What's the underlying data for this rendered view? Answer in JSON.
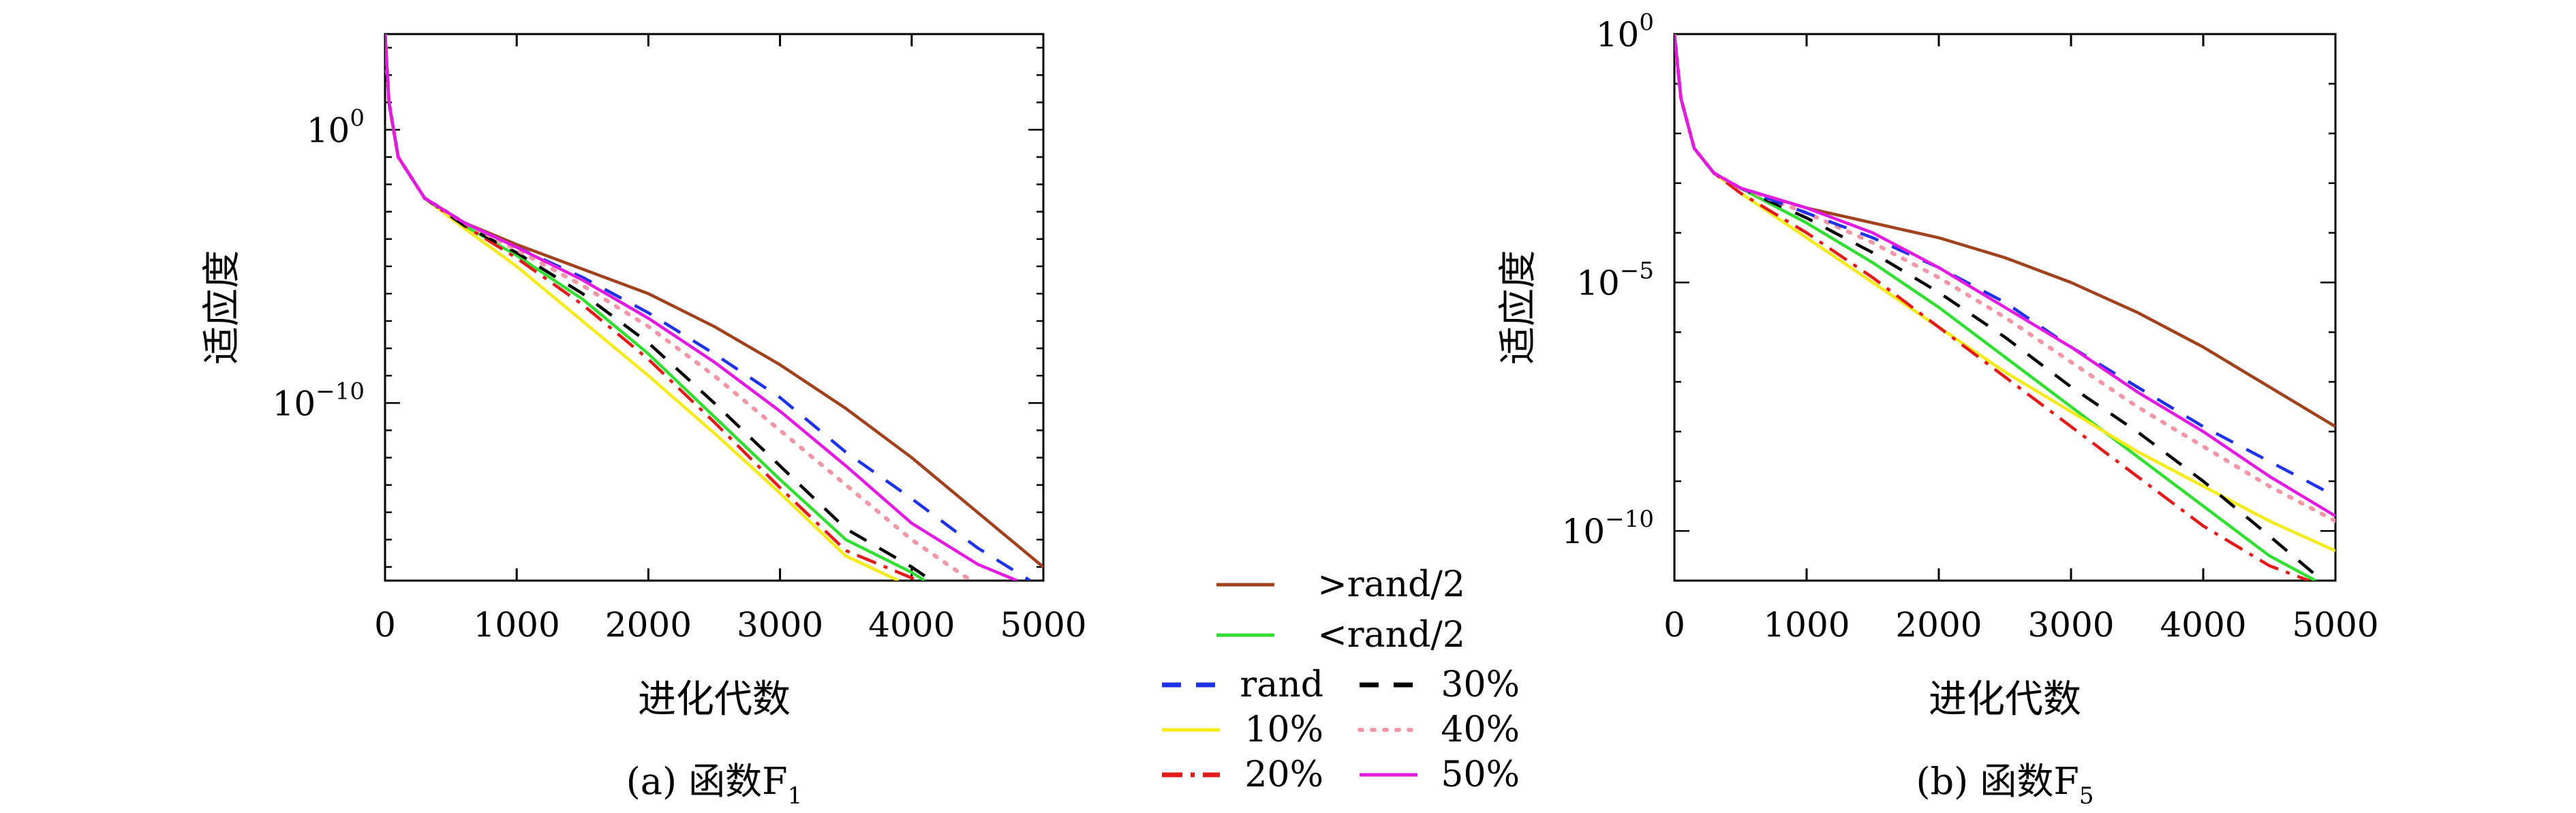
{
  "chart_data": [
    {
      "type": "line",
      "caption": "(a) 函数F",
      "caption_sub": "1",
      "xlabel": "进化代数",
      "ylabel": "适应度",
      "y_scale": "log",
      "xlim": [
        0,
        5000
      ],
      "ylim_exp": [
        -16.5,
        3.5
      ],
      "x_ticks": [
        "0",
        "1000",
        "2000",
        "3000",
        "4000",
        "5000"
      ],
      "y_ticks": [
        {
          "base": "10",
          "exp": "0",
          "value_exp": 0
        },
        {
          "base": "10",
          "exp": "−10",
          "value_exp": -10
        }
      ],
      "series": [
        {
          "name": ">rand/2",
          "color": "#a0421e",
          "dash": "none",
          "x": [
            0,
            30,
            100,
            300,
            600,
            1000,
            1500,
            2000,
            2500,
            3000,
            3500,
            4000,
            4500,
            5000
          ],
          "y_exp": [
            3.5,
            1.0,
            -1.0,
            -2.5,
            -3.4,
            -4.2,
            -5.1,
            -6.0,
            -7.2,
            -8.6,
            -10.2,
            -12.0,
            -14.0,
            -16.0
          ]
        },
        {
          "name": "<rand/2",
          "color": "#33dd33",
          "dash": "none",
          "x": [
            0,
            30,
            100,
            300,
            600,
            1000,
            1500,
            2000,
            2500,
            3000,
            3500,
            4000,
            4100
          ],
          "y_exp": [
            3.5,
            1.0,
            -1.0,
            -2.5,
            -3.5,
            -4.6,
            -6.2,
            -8.2,
            -10.5,
            -12.8,
            -15.0,
            -16.2,
            -16.5
          ]
        },
        {
          "name": "rand",
          "color": "#1f33e6",
          "dash": "28,22",
          "x": [
            0,
            30,
            100,
            300,
            600,
            1000,
            1500,
            2000,
            2500,
            3000,
            3500,
            4000,
            4500,
            4900
          ],
          "y_exp": [
            3.5,
            1.0,
            -1.0,
            -2.5,
            -3.4,
            -4.3,
            -5.4,
            -6.7,
            -8.2,
            -9.8,
            -11.8,
            -13.5,
            -15.3,
            -16.5
          ]
        },
        {
          "name": "30%",
          "color": "#000000",
          "dash": "28,22",
          "x": [
            0,
            30,
            100,
            300,
            600,
            1000,
            1500,
            2000,
            2500,
            3000,
            3500,
            4000,
            4150
          ],
          "y_exp": [
            3.5,
            1.0,
            -1.0,
            -2.5,
            -3.5,
            -4.5,
            -6.0,
            -7.8,
            -10.0,
            -12.3,
            -14.6,
            -16.0,
            -16.5
          ]
        },
        {
          "name": "10%",
          "color": "#f5ea1c",
          "dash": "none",
          "x": [
            0,
            30,
            100,
            300,
            600,
            1000,
            1500,
            2000,
            2500,
            3000,
            3500,
            3900
          ],
          "y_exp": [
            3.5,
            1.0,
            -1.0,
            -2.5,
            -3.6,
            -5.0,
            -7.0,
            -9.0,
            -11.1,
            -13.3,
            -15.6,
            -16.5
          ]
        },
        {
          "name": "40%",
          "color": "#f098a8",
          "dash": "4,14",
          "x": [
            0,
            30,
            100,
            300,
            600,
            1000,
            1500,
            2000,
            2500,
            3000,
            3500,
            4000,
            4450
          ],
          "y_exp": [
            3.5,
            1.0,
            -1.0,
            -2.5,
            -3.4,
            -4.4,
            -5.7,
            -7.2,
            -9.0,
            -11.0,
            -13.0,
            -15.0,
            -16.5
          ]
        },
        {
          "name": "20%",
          "color": "#e21b1b",
          "dash": "30,12,6,12",
          "x": [
            0,
            30,
            100,
            300,
            600,
            1000,
            1500,
            2000,
            2500,
            3000,
            3500,
            4000,
            4050
          ],
          "y_exp": [
            3.5,
            1.0,
            -1.0,
            -2.5,
            -3.5,
            -4.7,
            -6.4,
            -8.4,
            -10.7,
            -13.1,
            -15.4,
            -16.4,
            -16.5
          ]
        },
        {
          "name": "50%",
          "color": "#e21be0",
          "dash": "none",
          "x": [
            0,
            30,
            100,
            300,
            600,
            1000,
            1500,
            2000,
            2500,
            3000,
            3500,
            4000,
            4500,
            4800
          ],
          "y_exp": [
            3.5,
            1.0,
            -1.0,
            -2.5,
            -3.4,
            -4.3,
            -5.5,
            -6.9,
            -8.5,
            -10.3,
            -12.3,
            -14.4,
            -15.9,
            -16.5
          ]
        }
      ]
    },
    {
      "type": "line",
      "caption": "(b) 函数F",
      "caption_sub": "5",
      "xlabel": "进化代数",
      "ylabel": "适应度",
      "y_scale": "log",
      "xlim": [
        0,
        5000
      ],
      "ylim_exp": [
        -11.0,
        0.0
      ],
      "x_ticks": [
        "0",
        "1000",
        "2000",
        "3000",
        "4000",
        "5000"
      ],
      "y_ticks": [
        {
          "base": "10",
          "exp": "0",
          "value_exp": 0
        },
        {
          "base": "10",
          "exp": "−5",
          "value_exp": -5
        },
        {
          "base": "10",
          "exp": "−10",
          "value_exp": -10
        }
      ],
      "series": [
        {
          "name": ">rand/2",
          "color": "#a0421e",
          "dash": "none",
          "x": [
            0,
            50,
            150,
            300,
            500,
            1000,
            1500,
            2000,
            2500,
            3000,
            3500,
            4000,
            4500,
            5000
          ],
          "y_exp": [
            0.0,
            -1.3,
            -2.3,
            -2.8,
            -3.1,
            -3.5,
            -3.8,
            -4.1,
            -4.5,
            -5.0,
            -5.6,
            -6.3,
            -7.1,
            -7.9
          ]
        },
        {
          "name": "<rand/2",
          "color": "#33dd33",
          "dash": "none",
          "x": [
            0,
            50,
            150,
            300,
            500,
            1000,
            1500,
            2000,
            2500,
            3000,
            3500,
            4000,
            4500,
            4850
          ],
          "y_exp": [
            0.0,
            -1.3,
            -2.3,
            -2.8,
            -3.1,
            -3.8,
            -4.6,
            -5.5,
            -6.5,
            -7.5,
            -8.5,
            -9.5,
            -10.5,
            -11.0
          ]
        },
        {
          "name": "rand",
          "color": "#1f33e6",
          "dash": "28,22",
          "x": [
            0,
            50,
            150,
            300,
            500,
            1000,
            1500,
            2000,
            2500,
            3000,
            3500,
            4000,
            4500,
            5000
          ],
          "y_exp": [
            0.0,
            -1.3,
            -2.3,
            -2.8,
            -3.1,
            -3.6,
            -4.1,
            -4.7,
            -5.4,
            -6.3,
            -7.1,
            -7.9,
            -8.6,
            -9.3
          ]
        },
        {
          "name": "30%",
          "color": "#000000",
          "dash": "28,22",
          "x": [
            0,
            50,
            150,
            300,
            500,
            1000,
            1500,
            2000,
            2500,
            3000,
            3500,
            4000,
            4500,
            4900
          ],
          "y_exp": [
            0.0,
            -1.3,
            -2.3,
            -2.8,
            -3.1,
            -3.7,
            -4.4,
            -5.2,
            -6.1,
            -7.1,
            -8.0,
            -9.0,
            -10.1,
            -11.0
          ]
        },
        {
          "name": "10%",
          "color": "#f5ea1c",
          "dash": "none",
          "x": [
            0,
            50,
            150,
            300,
            500,
            1000,
            1500,
            2000,
            2500,
            3000,
            3500,
            4000,
            4500,
            5000
          ],
          "y_exp": [
            0.0,
            -1.3,
            -2.3,
            -2.8,
            -3.2,
            -4.1,
            -5.0,
            -5.9,
            -6.8,
            -7.6,
            -8.4,
            -9.1,
            -9.8,
            -10.4
          ]
        },
        {
          "name": "40%",
          "color": "#f098a8",
          "dash": "4,14",
          "x": [
            0,
            50,
            150,
            300,
            500,
            1000,
            1500,
            2000,
            2500,
            3000,
            3500,
            4000,
            4500,
            5000
          ],
          "y_exp": [
            0.0,
            -1.3,
            -2.3,
            -2.8,
            -3.1,
            -3.6,
            -4.2,
            -4.9,
            -5.7,
            -6.6,
            -7.5,
            -8.3,
            -9.1,
            -9.8
          ]
        },
        {
          "name": "20%",
          "color": "#e21b1b",
          "dash": "30,12,6,12",
          "x": [
            0,
            50,
            150,
            300,
            500,
            1000,
            1500,
            2000,
            2500,
            3000,
            3500,
            4000,
            4500,
            4800
          ],
          "y_exp": [
            0.0,
            -1.3,
            -2.3,
            -2.8,
            -3.2,
            -4.0,
            -4.9,
            -5.9,
            -6.9,
            -7.9,
            -8.9,
            -9.9,
            -10.7,
            -11.0
          ]
        },
        {
          "name": "50%",
          "color": "#e21be0",
          "dash": "none",
          "x": [
            0,
            50,
            150,
            300,
            500,
            1000,
            1500,
            2000,
            2500,
            3000,
            3500,
            4000,
            4500,
            5000
          ],
          "y_exp": [
            0.0,
            -1.3,
            -2.3,
            -2.8,
            -3.1,
            -3.5,
            -4.0,
            -4.7,
            -5.5,
            -6.3,
            -7.2,
            -8.0,
            -8.9,
            -9.7
          ]
        }
      ]
    }
  ],
  "legend": {
    "items": [
      {
        "key": "bro",
        "label": ">rand/2",
        "color": "#a0421e",
        "dash": "none"
      },
      {
        "key": "grn",
        "label": "<rand/2",
        "color": "#33dd33",
        "dash": "none"
      },
      {
        "key": "blu",
        "label": "rand",
        "color": "#1f33e6",
        "dash": "28,22"
      },
      {
        "key": "blk",
        "label": "30%",
        "color": "#000000",
        "dash": "28,22"
      },
      {
        "key": "yel",
        "label": "10%",
        "color": "#f5ea1c",
        "dash": "none"
      },
      {
        "key": "pnk",
        "label": "40%",
        "color": "#f098a8",
        "dash": "4,14"
      },
      {
        "key": "red",
        "label": "20%",
        "color": "#e21b1b",
        "dash": "30,12,6,12"
      },
      {
        "key": "mag",
        "label": "50%",
        "color": "#e21be0",
        "dash": "none"
      }
    ]
  }
}
